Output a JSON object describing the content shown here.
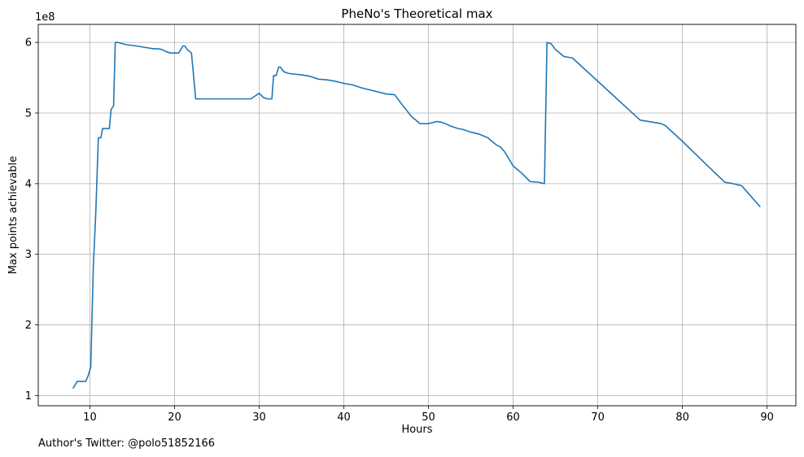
{
  "chart_data": {
    "type": "line",
    "title": "PheNo's Theoretical max",
    "xlabel": "Hours",
    "ylabel": "Max points achievable",
    "y_scale_label": "1e8",
    "xlim": [
      3.9,
      93.4
    ],
    "ylim": [
      0.855,
      6.255
    ],
    "x_ticks": [
      10,
      20,
      30,
      40,
      50,
      60,
      70,
      80,
      90
    ],
    "x_tick_labels": [
      "10",
      "20",
      "30",
      "40",
      "50",
      "60",
      "70",
      "80",
      "90"
    ],
    "y_ticks": [
      1,
      2,
      3,
      4,
      5,
      6
    ],
    "y_tick_labels": [
      "1",
      "2",
      "3",
      "4",
      "5",
      "6"
    ],
    "grid": true,
    "line_color": "#1f77b4",
    "grid_color": "#b0b0b0",
    "series": [
      {
        "name": "Max points achievable",
        "x": [
          8.0,
          8.5,
          9.5,
          9.8,
          10.1,
          10.4,
          10.7,
          11.0,
          11.3,
          11.5,
          11.8,
          12.0,
          12.3,
          12.5,
          12.8,
          13.0,
          13.3,
          13.6,
          13.9,
          14.2,
          14.8,
          15.5,
          16.5,
          17.5,
          18.0,
          18.5,
          19.0,
          19.5,
          20.0,
          20.5,
          21.0,
          21.2,
          21.5,
          22.0,
          22.5,
          29.0,
          30.0,
          30.5,
          31.0,
          31.5,
          31.7,
          32.0,
          32.3,
          32.5,
          32.8,
          33.0,
          33.5,
          35.0,
          36.0,
          37.0,
          38.0,
          39.0,
          40.0,
          41.0,
          42.0,
          43.0,
          44.0,
          45.0,
          46.0,
          47.0,
          48.0,
          49.0,
          50.0,
          51.0,
          51.5,
          52.0,
          52.5,
          53.0,
          53.5,
          54.0,
          54.5,
          55.0,
          56.0,
          57.0,
          57.5,
          58.0,
          58.5,
          59.0,
          59.5,
          60.0,
          61.0,
          62.0,
          63.0,
          63.7,
          64.0,
          64.5,
          65.0,
          66.0,
          67.0,
          75.0,
          76.0,
          77.0,
          77.5,
          78.0,
          80.0,
          83.0,
          85.0,
          86.0,
          87.0,
          89.2
        ],
        "values": [
          1.1,
          1.2,
          1.2,
          1.28,
          1.4,
          2.8,
          3.6,
          4.65,
          4.65,
          4.78,
          4.78,
          4.78,
          4.78,
          5.05,
          5.1,
          6.0,
          6.0,
          5.99,
          5.98,
          5.97,
          5.96,
          5.95,
          5.93,
          5.91,
          5.91,
          5.9,
          5.87,
          5.85,
          5.85,
          5.85,
          5.95,
          5.95,
          5.9,
          5.85,
          5.2,
          5.2,
          5.28,
          5.22,
          5.2,
          5.2,
          5.53,
          5.53,
          5.65,
          5.65,
          5.6,
          5.58,
          5.56,
          5.54,
          5.52,
          5.48,
          5.47,
          5.45,
          5.42,
          5.4,
          5.36,
          5.33,
          5.3,
          5.27,
          5.26,
          5.1,
          4.95,
          4.85,
          4.85,
          4.88,
          4.87,
          4.85,
          4.82,
          4.8,
          4.78,
          4.77,
          4.75,
          4.73,
          4.7,
          4.65,
          4.6,
          4.55,
          4.52,
          4.45,
          4.35,
          4.25,
          4.15,
          4.03,
          4.02,
          4.0,
          6.0,
          5.98,
          5.9,
          5.8,
          5.78,
          4.9,
          4.88,
          4.86,
          4.85,
          4.82,
          4.6,
          4.25,
          4.02,
          4.0,
          3.97,
          3.67
        ]
      }
    ]
  },
  "footer": {
    "note": "Author's Twitter: @polo51852166"
  }
}
